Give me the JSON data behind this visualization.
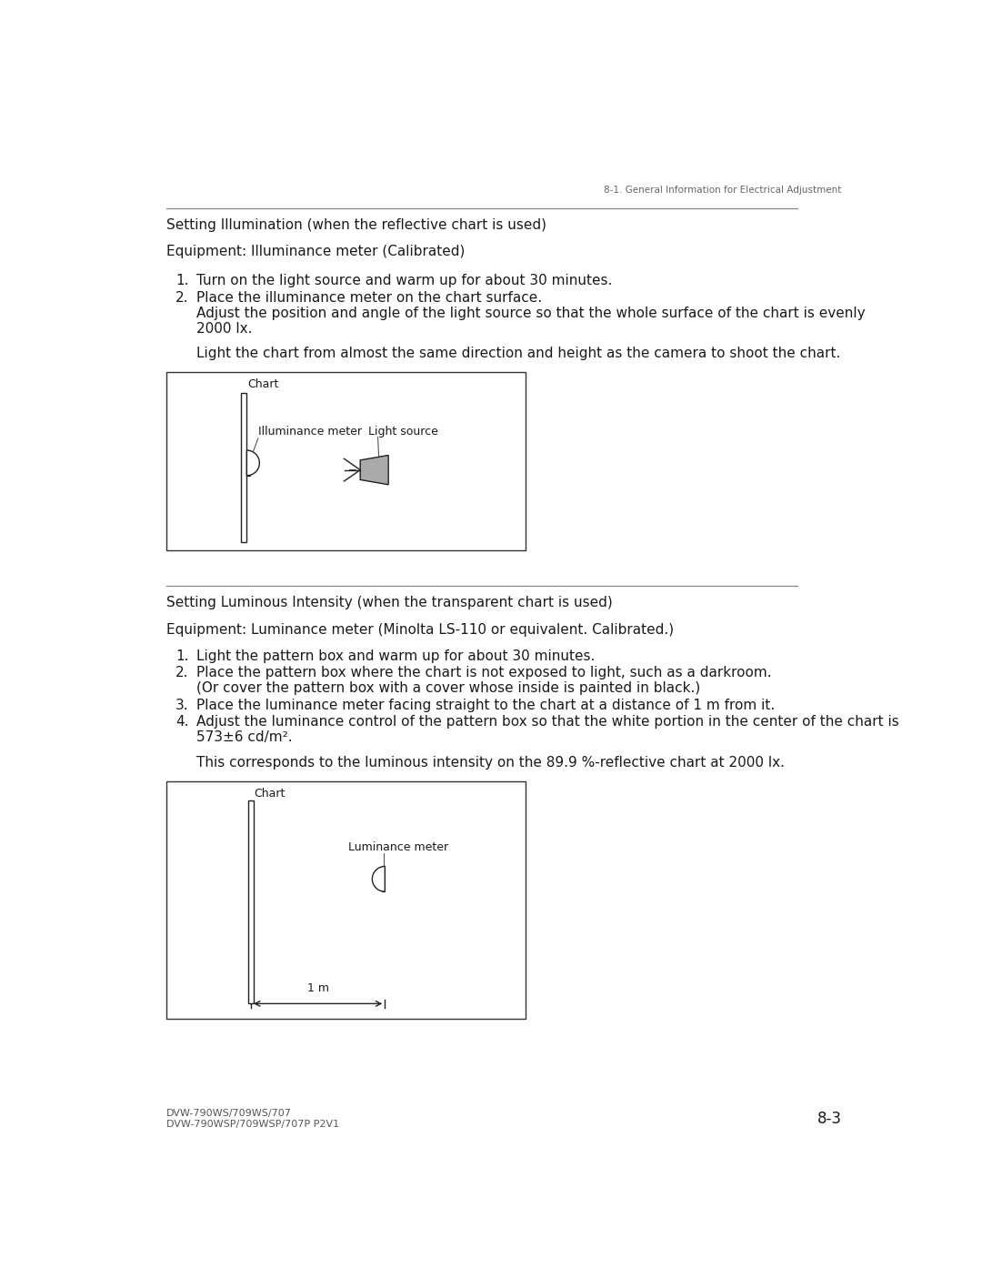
{
  "page_header": "8-1. General Information for Electrical Adjustment",
  "section1_title": "Setting Illumination (when the reflective chart is used)",
  "section1_equipment": "Equipment: Illuminance meter (Calibrated)",
  "section1_step1": "Turn on the light source and warm up for about 30 minutes.",
  "section1_step2a": "Place the illuminance meter on the chart surface.",
  "section1_step2b": "Adjust the position and angle of the light source so that the whole surface of the chart is evenly",
  "section1_step2c": "2000 lx.",
  "section1_note": "Light the chart from almost the same direction and height as the camera to shoot the chart.",
  "section2_title": "Setting Luminous Intensity (when the transparent chart is used)",
  "section2_equipment": "Equipment: Luminance meter (Minolta LS-110 or equivalent. Calibrated.)",
  "section2_step1": "Light the pattern box and warm up for about 30 minutes.",
  "section2_step2a": "Place the pattern box where the chart is not exposed to light, such as a darkroom.",
  "section2_step2b": "(Or cover the pattern box with a cover whose inside is painted in black.)",
  "section2_step3": "Place the luminance meter facing straight to the chart at a distance of 1 m from it.",
  "section2_step4a": "Adjust the luminance control of the pattern box so that the white portion in the center of the chart is",
  "section2_step4b": "573±6 cd/m².",
  "section2_note": "This corresponds to the luminous intensity on the 89.9 %-reflective chart at 2000 lx.",
  "footer_left1": "DVW-790WS/709WS/707",
  "footer_left2": "DVW-790WSP/709WSP/707P P2V1",
  "footer_right": "8-3",
  "bg_color": "#ffffff",
  "text_color": "#1a1a1a",
  "dim_color": "#555555",
  "line_color": "#222222",
  "header_color": "#666666"
}
